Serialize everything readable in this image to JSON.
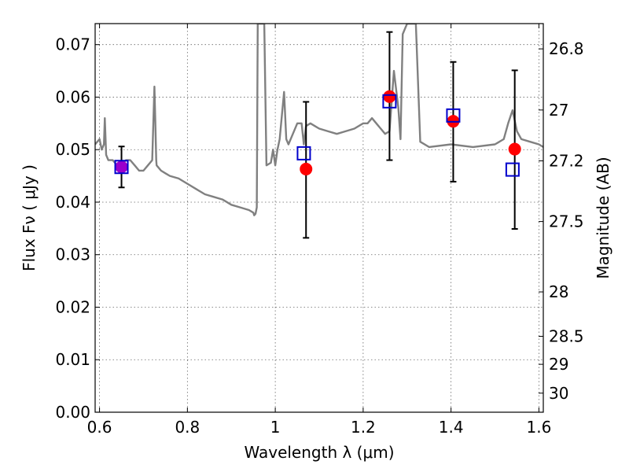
{
  "chart_data": {
    "type": "scatter",
    "xlabel": "Wavelength  λ (μm)",
    "ylabel": "Flux  Fν  ( μJy )",
    "ylabel_right": "Magnitude (AB)",
    "xlim": [
      0.59,
      1.61
    ],
    "ylim": [
      0.0,
      0.074
    ],
    "x_ticks": [
      0.6,
      0.8,
      1.0,
      1.2,
      1.4,
      1.6
    ],
    "x_tick_labels": [
      "0.6",
      "0.8",
      "1",
      "1.2",
      "1.4",
      "1.6"
    ],
    "y_ticks": [
      0.0,
      0.01,
      0.02,
      0.03,
      0.04,
      0.05,
      0.06,
      0.07
    ],
    "y_tick_labels": [
      "0.00",
      "0.01",
      "0.02",
      "0.03",
      "0.04",
      "0.05",
      "0.06",
      "0.07"
    ],
    "right_ticks": [
      26.8,
      27.0,
      27.2,
      27.5,
      28.0,
      28.5,
      29.0,
      30.0
    ],
    "right_tick_labels": [
      "26.8",
      "27",
      "27.2",
      "27.5",
      "28",
      "28.5",
      "29",
      "30"
    ],
    "grid": true,
    "colors": {
      "model_line": "#808080",
      "observed": "#ff0000",
      "model_points": "#0000cc",
      "overlap": "#9a00cc",
      "errorbar": "#000000"
    },
    "model_spectrum": {
      "x": [
        0.59,
        0.6,
        0.605,
        0.61,
        0.612,
        0.615,
        0.62,
        0.63,
        0.64,
        0.65,
        0.66,
        0.67,
        0.68,
        0.69,
        0.7,
        0.71,
        0.72,
        0.725,
        0.727,
        0.729,
        0.73,
        0.74,
        0.75,
        0.76,
        0.78,
        0.8,
        0.82,
        0.84,
        0.86,
        0.88,
        0.9,
        0.92,
        0.94,
        0.95,
        0.952,
        0.955,
        0.958,
        0.96,
        0.962,
        0.97,
        0.972,
        0.975,
        0.98,
        0.99,
        0.995,
        1.0,
        1.005,
        1.01,
        1.02,
        1.025,
        1.03,
        1.04,
        1.05,
        1.06,
        1.065,
        1.07,
        1.08,
        1.09,
        1.1,
        1.12,
        1.14,
        1.16,
        1.18,
        1.2,
        1.21,
        1.22,
        1.23,
        1.24,
        1.25,
        1.26,
        1.27,
        1.28,
        1.285,
        1.29,
        1.3,
        1.31,
        1.315,
        1.32,
        1.33,
        1.35,
        1.4,
        1.45,
        1.5,
        1.52,
        1.53,
        1.54,
        1.55,
        1.56,
        1.58,
        1.6,
        1.61
      ],
      "y": [
        0.051,
        0.052,
        0.05,
        0.051,
        0.056,
        0.049,
        0.048,
        0.048,
        0.047,
        0.047,
        0.048,
        0.048,
        0.047,
        0.046,
        0.046,
        0.047,
        0.048,
        0.062,
        0.055,
        0.048,
        0.047,
        0.046,
        0.0455,
        0.045,
        0.0445,
        0.0435,
        0.0425,
        0.0415,
        0.041,
        0.0405,
        0.0395,
        0.039,
        0.0385,
        0.038,
        0.0375,
        0.0378,
        0.039,
        0.074,
        0.074,
        0.074,
        0.074,
        0.074,
        0.047,
        0.0475,
        0.05,
        0.047,
        0.05,
        0.052,
        0.061,
        0.052,
        0.051,
        0.053,
        0.055,
        0.055,
        0.051,
        0.0545,
        0.055,
        0.0545,
        0.054,
        0.0535,
        0.053,
        0.0535,
        0.054,
        0.055,
        0.055,
        0.056,
        0.055,
        0.054,
        0.053,
        0.0535,
        0.065,
        0.058,
        0.052,
        0.072,
        0.074,
        0.074,
        0.074,
        0.074,
        0.0515,
        0.0505,
        0.051,
        0.0505,
        0.051,
        0.052,
        0.055,
        0.0575,
        0.0535,
        0.052,
        0.0515,
        0.051,
        0.0505
      ]
    },
    "observed": {
      "x": [
        0.65,
        1.07,
        1.26,
        1.405,
        1.545
      ],
      "y": [
        0.0467,
        0.0463,
        0.0601,
        0.0554,
        0.0501
      ],
      "yerr_low": [
        0.0039,
        0.0131,
        0.0121,
        0.0115,
        0.0152
      ],
      "yerr_high": [
        0.0039,
        0.0128,
        0.0123,
        0.0113,
        0.015
      ]
    },
    "model_points": {
      "x": [
        0.65,
        1.065,
        1.26,
        1.405,
        1.54
      ],
      "y": [
        0.0467,
        0.0493,
        0.0592,
        0.0565,
        0.0462
      ]
    }
  }
}
